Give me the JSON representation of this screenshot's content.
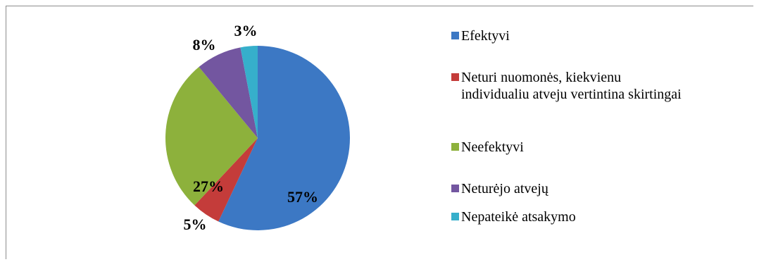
{
  "chart_data": {
    "type": "pie",
    "title": "",
    "slices": [
      {
        "label": "Efektyvi",
        "value": 57,
        "display": "57%",
        "color": "#3C78C4"
      },
      {
        "label": "Neturi nuomonės, kiekvienu individualiu atveju vertintina skirtingai",
        "value": 5,
        "display": "5%",
        "color": "#C43C3A"
      },
      {
        "label": "Neefektyvi",
        "value": 27,
        "display": "27%",
        "color": "#8DB13C"
      },
      {
        "label": "Neturėjo atvejų",
        "value": 8,
        "display": "8%",
        "color": "#7356A0"
      },
      {
        "label": "Nepateikė atsakymo",
        "value": 3,
        "display": "3%",
        "color": "#36AFCB"
      }
    ],
    "legend": {
      "position": "right",
      "entries": [
        {
          "lines": [
            "Efektyvi"
          ]
        },
        {
          "lines": [
            "Neturi nuomonės, kiekvienu",
            "individualiu atveju vertintina skirtingai"
          ]
        },
        {
          "lines": [
            "Neefektyvi"
          ]
        },
        {
          "lines": [
            "Neturėjo atvejų"
          ]
        },
        {
          "lines": [
            "Nepateikė atsakymo"
          ]
        }
      ]
    }
  }
}
